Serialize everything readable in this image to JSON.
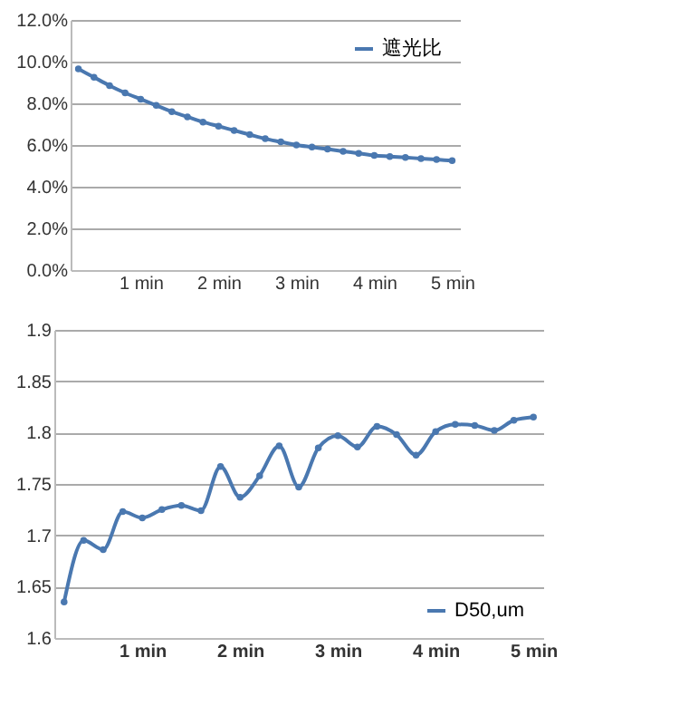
{
  "chart_data": [
    {
      "type": "line",
      "categories": [
        null,
        null,
        null,
        null,
        "1 min",
        null,
        null,
        null,
        null,
        "2 min",
        null,
        null,
        null,
        null,
        "3 min",
        null,
        null,
        null,
        null,
        "4 min",
        null,
        null,
        null,
        null,
        "5 min"
      ],
      "series": [
        {
          "name": "遮光比",
          "color": "#4a78b0",
          "values": [
            9.65,
            9.25,
            8.85,
            8.5,
            8.2,
            7.9,
            7.6,
            7.35,
            7.1,
            6.9,
            6.7,
            6.5,
            6.3,
            6.15,
            6.0,
            5.9,
            5.8,
            5.7,
            5.6,
            5.5,
            5.45,
            5.4,
            5.35,
            5.3,
            5.25
          ]
        }
      ],
      "ylim": [
        0,
        12
      ],
      "yticks": [
        {
          "value": 0,
          "label": "0.0%"
        },
        {
          "value": 2,
          "label": "2.0%"
        },
        {
          "value": 4,
          "label": "4.0%"
        },
        {
          "value": 6,
          "label": "6.0%"
        },
        {
          "value": 8,
          "label": "8.0%"
        },
        {
          "value": 10,
          "label": "10.0%"
        },
        {
          "value": 12,
          "label": "12.0%"
        }
      ],
      "grid": "y",
      "legend": "top right",
      "marker": "circle"
    },
    {
      "type": "line",
      "categories": [
        null,
        null,
        null,
        null,
        "1 min",
        null,
        null,
        null,
        null,
        "2 min",
        null,
        null,
        null,
        null,
        "3 min",
        null,
        null,
        null,
        null,
        "4 min",
        null,
        null,
        null,
        null,
        "5 min"
      ],
      "series": [
        {
          "name": "D50,um",
          "color": "#4a78b0",
          "values": [
            1.635,
            1.695,
            1.686,
            1.723,
            1.717,
            1.725,
            1.729,
            1.724,
            1.767,
            1.737,
            1.758,
            1.787,
            1.747,
            1.785,
            1.797,
            1.786,
            1.806,
            1.798,
            1.778,
            1.801,
            1.808,
            1.807,
            1.802,
            1.812,
            1.815
          ]
        }
      ],
      "ylim": [
        1.6,
        1.9
      ],
      "yticks": [
        1.6,
        1.65,
        1.7,
        1.75,
        1.8,
        1.85,
        1.9
      ],
      "grid": "y",
      "legend": "bottom right",
      "marker": "circle"
    }
  ]
}
